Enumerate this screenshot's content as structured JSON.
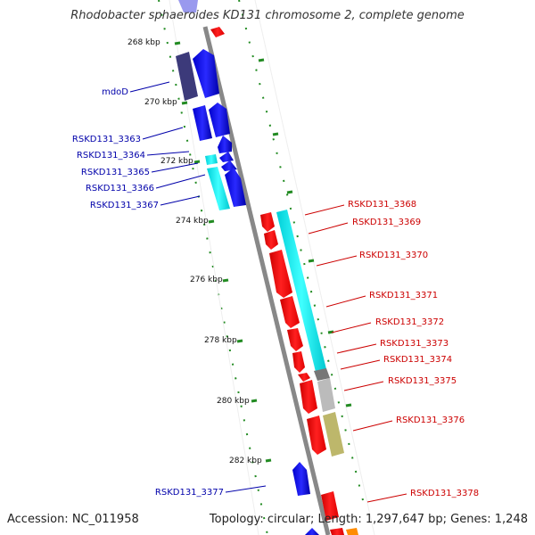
{
  "title": "Rhodobacter sphaeroides KD131 chromosome 2, complete genome",
  "footer": {
    "accession": "Accession: NC_011958",
    "summary": "Topology: circular; Length: 1,297,647 bp; Genes: 1,248"
  },
  "scale_labels": [
    "268 kbp",
    "270 kbp",
    "272 kbp",
    "274 kbp",
    "276 kbp",
    "278 kbp",
    "280 kbp",
    "282 kbp"
  ],
  "gene_labels_left": [
    "mdoD",
    "RSKD131_3363",
    "RSKD131_3364",
    "RSKD131_3365",
    "RSKD131_3366",
    "RSKD131_3367",
    "RSKD131_3377"
  ],
  "gene_labels_right": [
    "RSKD131_3368",
    "RSKD131_3369",
    "RSKD131_3370",
    "RSKD131_3371",
    "RSKD131_3372",
    "RSKD131_3373",
    "RSKD131_3374",
    "RSKD131_3375",
    "RSKD131_3376",
    "RSKD131_3378"
  ],
  "colors": {
    "forward_strand": "#ff0000",
    "reverse_strand": "#0000ee",
    "left_label": "#0000aa",
    "right_label": "#cc0000",
    "cyan_feature": "#00e5ee",
    "grey_feature": "#bbbbbb",
    "dark_grey_feature": "#777777",
    "olive_feature": "#bdb76b",
    "purple_feature": "#3c3a7a",
    "orange_feature": "#ff8c00",
    "backbone": "#888888",
    "tick": "#228b22"
  }
}
